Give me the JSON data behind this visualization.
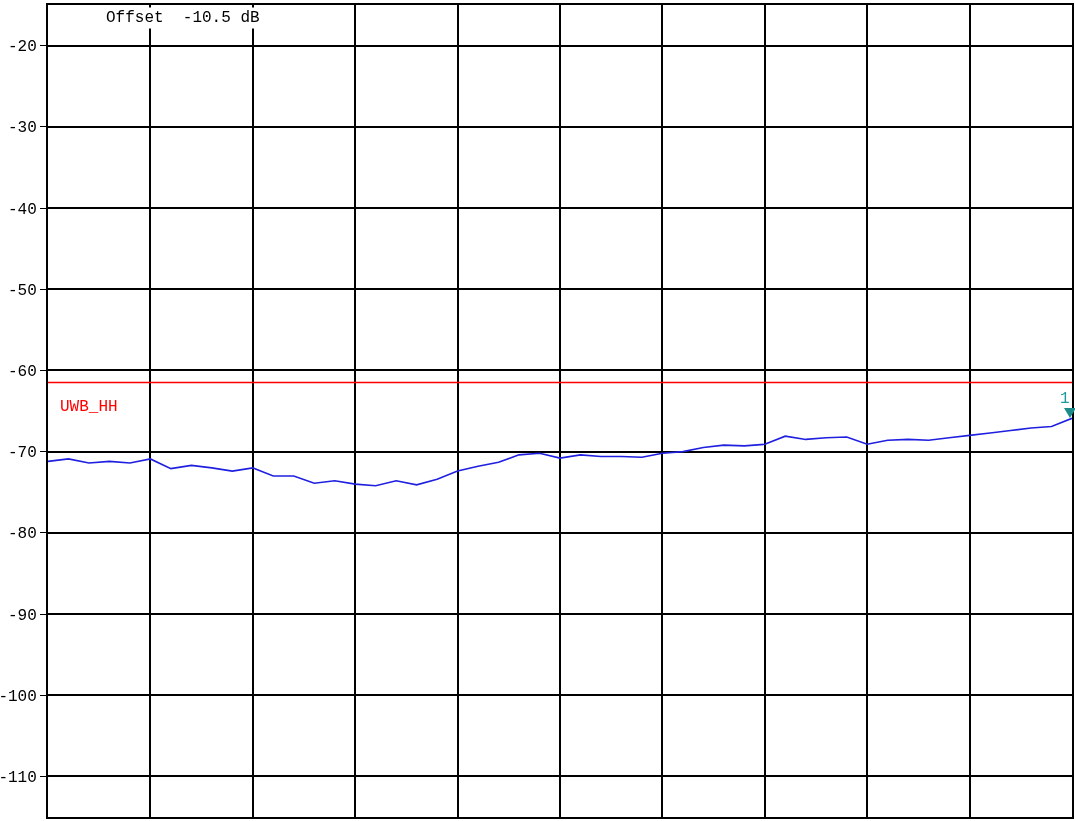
{
  "chart_data": {
    "type": "line",
    "categories": [
      null,
      null,
      null,
      null,
      null,
      null,
      null,
      null,
      null,
      null,
      null,
      null,
      null,
      null,
      null,
      null,
      null,
      null,
      null,
      null,
      null,
      null,
      null,
      null,
      null,
      null,
      null,
      null,
      null,
      null,
      null,
      null,
      null,
      null,
      null,
      null,
      null,
      null,
      null,
      null,
      null,
      null,
      null,
      null,
      null,
      null,
      null,
      null,
      null,
      null,
      null
    ],
    "series": [
      {
        "color": "#1f1fe0",
        "values": [
          -71.2,
          -70.9,
          -71.4,
          -71.2,
          -71.4,
          -70.9,
          -72.1,
          -71.7,
          -72.0,
          -72.4,
          -72.0,
          -73.0,
          -73.0,
          -73.9,
          -73.6,
          -74.0,
          -74.2,
          -73.6,
          -74.1,
          -73.4,
          -72.4,
          -71.8,
          -71.3,
          -70.4,
          -70.2,
          -70.8,
          -70.4,
          -70.6,
          -70.6,
          -70.7,
          -70.2,
          -70.0,
          -69.5,
          -69.2,
          -69.3,
          -69.1,
          -68.1,
          -68.5,
          -68.3,
          -68.2,
          -69.1,
          -68.6,
          -68.5,
          -68.6,
          -68.3,
          -68.0,
          -67.7,
          -67.4,
          -67.1,
          -66.9,
          -65.9
        ]
      }
    ],
    "ylim": [
      -115,
      -15
    ],
    "yticks": [
      -20,
      -30,
      -40,
      -50,
      -60,
      -70,
      -80,
      -90,
      -100,
      -110
    ],
    "grid": true,
    "tick_labels": "y",
    "marker": "none",
    "line_style": "solid",
    "ref_lines": [
      {
        "axis": "y",
        "value": -61.5,
        "label": "UWB_HH",
        "color": "#ff0000"
      }
    ],
    "annotations": [
      "Offset  -10.5 dB",
      "1"
    ]
  }
}
